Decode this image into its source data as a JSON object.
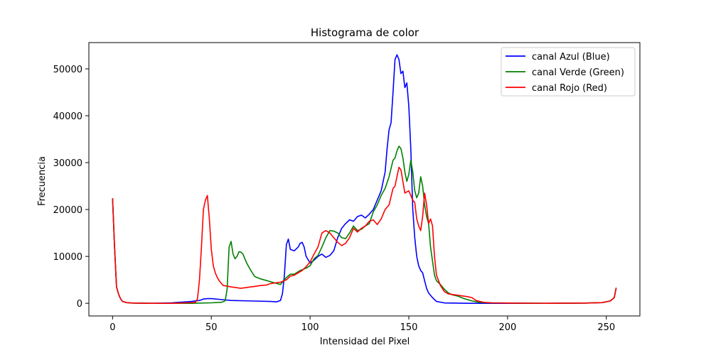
{
  "chart_data": {
    "type": "line",
    "title": "Histograma de color",
    "xlabel": "Intensidad del Pixel",
    "ylabel": "Frecuencia",
    "xlim": [
      -12,
      267
    ],
    "ylim": [
      -2700,
      55600
    ],
    "xticks": [
      0,
      50,
      100,
      150,
      200,
      250
    ],
    "yticks": [
      0,
      10000,
      20000,
      30000,
      40000,
      50000
    ],
    "grid": false,
    "legend_position": "top-right",
    "series": [
      {
        "name": "canal Azul (Blue)",
        "color": "#0000ff",
        "points": [
          [
            0,
            22400
          ],
          [
            1,
            12000
          ],
          [
            2,
            3500
          ],
          [
            3,
            2000
          ],
          [
            4,
            1000
          ],
          [
            5,
            400
          ],
          [
            7,
            150
          ],
          [
            10,
            50
          ],
          [
            20,
            0
          ],
          [
            30,
            100
          ],
          [
            35,
            250
          ],
          [
            40,
            400
          ],
          [
            44,
            600
          ],
          [
            46,
            900
          ],
          [
            48,
            1000
          ],
          [
            50,
            1000
          ],
          [
            55,
            800
          ],
          [
            60,
            600
          ],
          [
            70,
            500
          ],
          [
            80,
            400
          ],
          [
            83,
            300
          ],
          [
            85,
            600
          ],
          [
            86,
            2000
          ],
          [
            87,
            6000
          ],
          [
            88,
            12500
          ],
          [
            89,
            13700
          ],
          [
            90,
            11500
          ],
          [
            92,
            11200
          ],
          [
            94,
            12000
          ],
          [
            95,
            12800
          ],
          [
            96,
            13000
          ],
          [
            97,
            12000
          ],
          [
            98,
            10000
          ],
          [
            100,
            8600
          ],
          [
            102,
            9200
          ],
          [
            104,
            10000
          ],
          [
            106,
            10500
          ],
          [
            108,
            9800
          ],
          [
            110,
            10200
          ],
          [
            112,
            11200
          ],
          [
            114,
            14000
          ],
          [
            116,
            16000
          ],
          [
            118,
            17000
          ],
          [
            120,
            17800
          ],
          [
            122,
            17500
          ],
          [
            124,
            18500
          ],
          [
            126,
            18800
          ],
          [
            128,
            18200
          ],
          [
            130,
            19000
          ],
          [
            132,
            20000
          ],
          [
            134,
            22000
          ],
          [
            136,
            24000
          ],
          [
            138,
            28000
          ],
          [
            139,
            33000
          ],
          [
            140,
            37000
          ],
          [
            141,
            38500
          ],
          [
            142,
            45000
          ],
          [
            143,
            52000
          ],
          [
            144,
            53000
          ],
          [
            145,
            52000
          ],
          [
            146,
            49000
          ],
          [
            147,
            49500
          ],
          [
            148,
            46000
          ],
          [
            149,
            47000
          ],
          [
            150,
            42000
          ],
          [
            151,
            33000
          ],
          [
            152,
            20000
          ],
          [
            153,
            14000
          ],
          [
            154,
            10000
          ],
          [
            155,
            8000
          ],
          [
            156,
            7000
          ],
          [
            157,
            6500
          ],
          [
            158,
            4800
          ],
          [
            159,
            3200
          ],
          [
            160,
            2200
          ],
          [
            162,
            1200
          ],
          [
            164,
            400
          ],
          [
            168,
            80
          ],
          [
            180,
            0
          ],
          [
            200,
            0
          ],
          [
            220,
            0
          ],
          [
            240,
            50
          ],
          [
            248,
            150
          ],
          [
            252,
            500
          ],
          [
            254,
            1200
          ],
          [
            255,
            3300
          ]
        ]
      },
      {
        "name": "canal Verde (Green)",
        "color": "#008000",
        "points": [
          [
            0,
            22400
          ],
          [
            1,
            12000
          ],
          [
            2,
            3500
          ],
          [
            3,
            2000
          ],
          [
            4,
            1000
          ],
          [
            5,
            400
          ],
          [
            7,
            150
          ],
          [
            10,
            50
          ],
          [
            20,
            0
          ],
          [
            40,
            0
          ],
          [
            50,
            100
          ],
          [
            55,
            200
          ],
          [
            57,
            500
          ],
          [
            58,
            3000
          ],
          [
            59,
            12000
          ],
          [
            60,
            13200
          ],
          [
            61,
            10500
          ],
          [
            62,
            9500
          ],
          [
            63,
            10000
          ],
          [
            64,
            11000
          ],
          [
            65,
            10900
          ],
          [
            66,
            10500
          ],
          [
            68,
            8500
          ],
          [
            70,
            7000
          ],
          [
            72,
            5700
          ],
          [
            75,
            5200
          ],
          [
            80,
            4600
          ],
          [
            85,
            4000
          ],
          [
            88,
            5500
          ],
          [
            90,
            6200
          ],
          [
            92,
            6200
          ],
          [
            95,
            7000
          ],
          [
            98,
            7500
          ],
          [
            100,
            8000
          ],
          [
            102,
            9500
          ],
          [
            104,
            10200
          ],
          [
            106,
            12000
          ],
          [
            108,
            14000
          ],
          [
            110,
            15500
          ],
          [
            112,
            15400
          ],
          [
            114,
            15000
          ],
          [
            116,
            14000
          ],
          [
            118,
            13800
          ],
          [
            120,
            15000
          ],
          [
            122,
            16500
          ],
          [
            124,
            15500
          ],
          [
            126,
            15800
          ],
          [
            128,
            16500
          ],
          [
            130,
            17000
          ],
          [
            132,
            19500
          ],
          [
            134,
            21000
          ],
          [
            136,
            23000
          ],
          [
            138,
            24500
          ],
          [
            140,
            27000
          ],
          [
            142,
            30500
          ],
          [
            143,
            31000
          ],
          [
            144,
            32500
          ],
          [
            145,
            33500
          ],
          [
            146,
            33000
          ],
          [
            147,
            31000
          ],
          [
            148,
            28000
          ],
          [
            149,
            26000
          ],
          [
            150,
            27500
          ],
          [
            151,
            30500
          ],
          [
            152,
            28000
          ],
          [
            153,
            24000
          ],
          [
            154,
            22500
          ],
          [
            155,
            23500
          ],
          [
            156,
            27000
          ],
          [
            157,
            25000
          ],
          [
            158,
            21000
          ],
          [
            159,
            18500
          ],
          [
            160,
            17000
          ],
          [
            161,
            12000
          ],
          [
            162,
            9000
          ],
          [
            163,
            6000
          ],
          [
            164,
            4800
          ],
          [
            166,
            4000
          ],
          [
            168,
            3000
          ],
          [
            170,
            2200
          ],
          [
            172,
            1800
          ],
          [
            175,
            1500
          ],
          [
            178,
            1000
          ],
          [
            182,
            500
          ],
          [
            185,
            250
          ],
          [
            190,
            100
          ],
          [
            200,
            50
          ],
          [
            220,
            0
          ],
          [
            240,
            50
          ],
          [
            248,
            150
          ],
          [
            252,
            500
          ],
          [
            254,
            1200
          ],
          [
            255,
            3300
          ]
        ]
      },
      {
        "name": "canal Rojo (Red)",
        "color": "#ff0000",
        "points": [
          [
            0,
            22400
          ],
          [
            1,
            12000
          ],
          [
            2,
            3500
          ],
          [
            3,
            2000
          ],
          [
            4,
            1000
          ],
          [
            5,
            400
          ],
          [
            7,
            150
          ],
          [
            10,
            50
          ],
          [
            20,
            0
          ],
          [
            30,
            0
          ],
          [
            38,
            100
          ],
          [
            42,
            200
          ],
          [
            43,
            1000
          ],
          [
            44,
            5000
          ],
          [
            45,
            12000
          ],
          [
            46,
            20000
          ],
          [
            47,
            22000
          ],
          [
            48,
            23000
          ],
          [
            49,
            18000
          ],
          [
            50,
            11500
          ],
          [
            51,
            8000
          ],
          [
            52,
            6500
          ],
          [
            53,
            5500
          ],
          [
            54,
            4800
          ],
          [
            56,
            3800
          ],
          [
            60,
            3500
          ],
          [
            65,
            3200
          ],
          [
            70,
            3500
          ],
          [
            72,
            3600
          ],
          [
            75,
            3800
          ],
          [
            78,
            3900
          ],
          [
            80,
            4200
          ],
          [
            85,
            4500
          ],
          [
            88,
            5000
          ],
          [
            90,
            5800
          ],
          [
            92,
            6000
          ],
          [
            94,
            6500
          ],
          [
            96,
            7000
          ],
          [
            98,
            7800
          ],
          [
            100,
            8800
          ],
          [
            102,
            10500
          ],
          [
            104,
            12000
          ],
          [
            106,
            15000
          ],
          [
            108,
            15500
          ],
          [
            110,
            15000
          ],
          [
            112,
            14000
          ],
          [
            114,
            13000
          ],
          [
            116,
            12300
          ],
          [
            118,
            12800
          ],
          [
            120,
            14000
          ],
          [
            122,
            16000
          ],
          [
            124,
            15200
          ],
          [
            126,
            16000
          ],
          [
            128,
            16500
          ],
          [
            130,
            17500
          ],
          [
            132,
            17800
          ],
          [
            134,
            16800
          ],
          [
            136,
            18000
          ],
          [
            138,
            20000
          ],
          [
            140,
            21000
          ],
          [
            142,
            24500
          ],
          [
            143,
            25000
          ],
          [
            144,
            27000
          ],
          [
            145,
            29000
          ],
          [
            146,
            28500
          ],
          [
            147,
            26000
          ],
          [
            148,
            23500
          ],
          [
            150,
            24000
          ],
          [
            151,
            23000
          ],
          [
            152,
            22000
          ],
          [
            153,
            21500
          ],
          [
            154,
            18000
          ],
          [
            155,
            16500
          ],
          [
            156,
            15500
          ],
          [
            157,
            18500
          ],
          [
            158,
            23500
          ],
          [
            159,
            21000
          ],
          [
            160,
            17000
          ],
          [
            161,
            18000
          ],
          [
            162,
            16500
          ],
          [
            163,
            10000
          ],
          [
            164,
            6000
          ],
          [
            166,
            3800
          ],
          [
            168,
            2500
          ],
          [
            170,
            2000
          ],
          [
            175,
            1700
          ],
          [
            180,
            1400
          ],
          [
            182,
            1200
          ],
          [
            184,
            600
          ],
          [
            188,
            200
          ],
          [
            192,
            100
          ],
          [
            200,
            50
          ],
          [
            220,
            0
          ],
          [
            240,
            50
          ],
          [
            248,
            150
          ],
          [
            252,
            500
          ],
          [
            254,
            1200
          ],
          [
            255,
            3300
          ]
        ]
      }
    ]
  }
}
